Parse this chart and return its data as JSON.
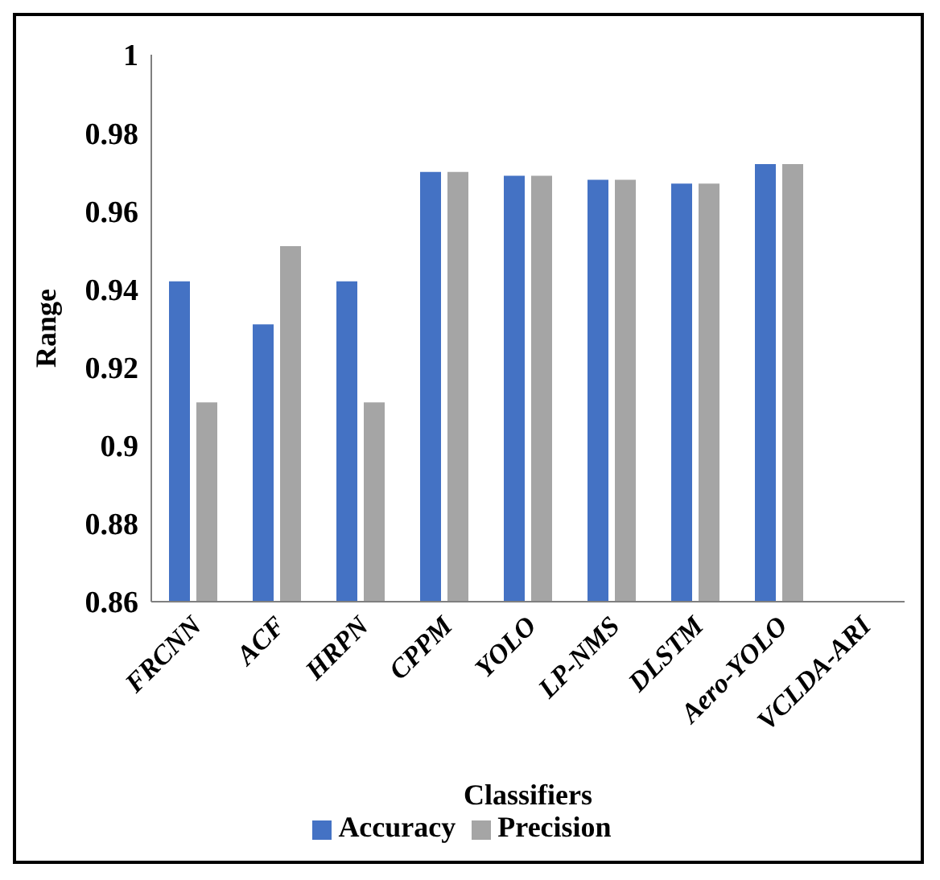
{
  "chart_data": {
    "type": "bar",
    "xlabel": "Classifiers",
    "ylabel": "Range",
    "categories": [
      "FRCNN",
      "ACF",
      "HRPN",
      "CPPM",
      "YOLO",
      "LP-NMS",
      "DLSTM",
      "Aero-YOLO",
      "VCLDA-ARI"
    ],
    "series": [
      {
        "name": "Accuracy",
        "color": "#4472c4",
        "values": [
          0.942,
          0.931,
          0.942,
          0.97,
          0.969,
          0.968,
          0.967,
          0.972,
          null
        ]
      },
      {
        "name": "Precision",
        "color": "#a5a5a5",
        "values": [
          0.911,
          0.951,
          0.911,
          0.97,
          0.969,
          0.968,
          0.967,
          0.972,
          null
        ]
      }
    ],
    "ylim": [
      0.86,
      1
    ],
    "yticks": [
      0.86,
      0.88,
      0.9,
      0.92,
      0.94,
      0.96,
      0.98,
      1
    ],
    "grid": false,
    "legend": "bottom"
  }
}
